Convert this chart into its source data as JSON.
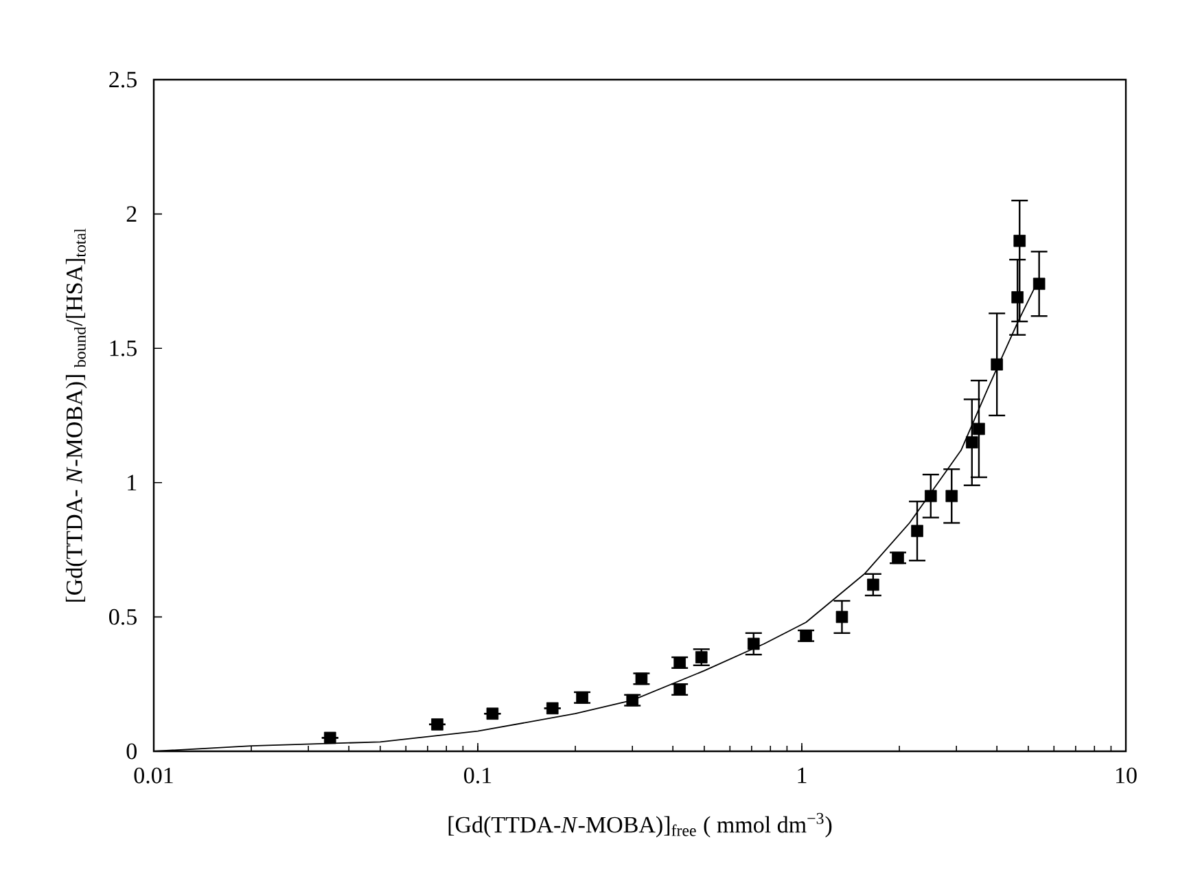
{
  "chart_data": {
    "type": "scatter",
    "xlabel": "[Gd(TTDA-*N*-MOBA)]$_{free}$ ( mmol dm$^{−3}$)",
    "ylabel": "[Gd(TTDA- *N*-MOBA)] $_{bound}$/[HSA]$_{total}$",
    "log": "x",
    "xlim": [
      0.01,
      10
    ],
    "ylim": [
      0,
      2.5
    ],
    "xticks": [
      0.01,
      0.1,
      1,
      10
    ],
    "yticks": [
      0,
      0.5,
      1,
      1.5,
      2,
      2.5
    ],
    "series": [
      {
        "color": "#000000",
        "marker": "square",
        "x": [
          0.035,
          0.075,
          0.111,
          0.17,
          0.21,
          0.3,
          0.32,
          0.42,
          0.42,
          0.49,
          0.71,
          1.03,
          1.33,
          1.66,
          1.98,
          2.27,
          2.5,
          2.9,
          3.35,
          3.52,
          4.0,
          4.63,
          4.7,
          5.4
        ],
        "values": [
          0.05,
          0.1,
          0.14,
          0.16,
          0.2,
          0.19,
          0.27,
          0.33,
          0.23,
          0.35,
          0.4,
          0.43,
          0.5,
          0.62,
          0.72,
          0.82,
          0.95,
          0.95,
          1.15,
          1.2,
          1.44,
          1.69,
          1.9,
          1.74
        ],
        "errors": [
          null,
          null,
          null,
          null,
          0.02,
          0.02,
          0.02,
          0.02,
          0.02,
          0.03,
          0.04,
          0.02,
          0.06,
          0.04,
          0.02,
          0.11,
          0.08,
          0.1,
          0.16,
          0.18,
          0.19,
          0.14,
          [
            1.6,
            2.05
          ],
          0.12
        ]
      },
      {
        "type": "line",
        "color": "#000000",
        "marker": "none",
        "line_style": "solid",
        "x": [
          0.01,
          0.02,
          0.05,
          0.1,
          0.2,
          0.3,
          0.5,
          0.765,
          1.03,
          1.56,
          2.15,
          3.1,
          3.75,
          4.65,
          5.3
        ],
        "values": [
          0,
          0.02,
          0.035,
          0.075,
          0.14,
          0.19,
          0.3,
          0.4,
          0.48,
          0.66,
          0.85,
          1.12,
          1.35,
          1.6,
          1.74
        ]
      }
    ]
  }
}
